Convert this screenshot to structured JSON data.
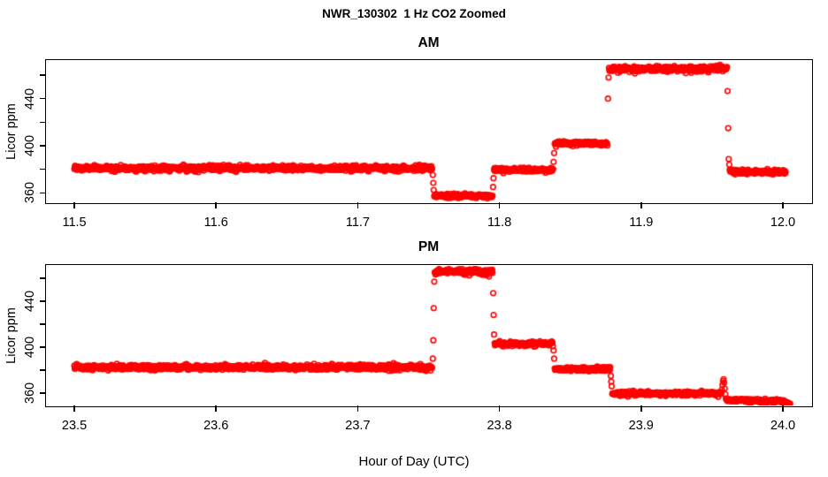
{
  "title": "NWR_130302  1 Hz CO2 Zoomed",
  "xlabel": "Hour of Day (UTC)",
  "colors": {
    "marker": "#FF0000",
    "axis": "#000000",
    "background": "#FFFFFF"
  },
  "chart_data": [
    {
      "id": "am",
      "type": "scatter",
      "title": "AM",
      "ylabel": "Licor ppm",
      "marker": "open-circle",
      "sample_rate_hz": 1,
      "xlim": [
        11.48,
        12.02
      ],
      "ylim": [
        352.0,
        472.8
      ],
      "grid": false,
      "x_ticks": [
        {
          "t": 11.5,
          "label": "11.5"
        },
        {
          "t": 11.6,
          "label": "11.6"
        },
        {
          "t": 11.7,
          "label": "11.7"
        },
        {
          "t": 11.8,
          "label": "11.8"
        },
        {
          "t": 11.9,
          "label": "11.9"
        },
        {
          "t": 12.0,
          "label": "12.0"
        }
      ],
      "y_ticks": [
        {
          "v": 360,
          "label": "360"
        },
        {
          "v": 380,
          "label": ""
        },
        {
          "v": 400,
          "label": "400"
        },
        {
          "v": 420,
          "label": ""
        },
        {
          "v": 440,
          "label": "440"
        },
        {
          "v": 460,
          "label": ""
        }
      ],
      "segments": [
        {
          "t0": 11.5,
          "t1": 11.7526,
          "v": 381.0,
          "sd": 1.1
        },
        {
          "t0": 11.754,
          "t1": 11.7952,
          "v": 357.5,
          "sd": 0.9
        },
        {
          "t0": 11.7962,
          "t1": 11.8378,
          "v": 379.5,
          "sd": 0.9
        },
        {
          "t0": 11.839,
          "t1": 11.8763,
          "v": 402.0,
          "sd": 0.9
        },
        {
          "t0": 11.8773,
          "t1": 11.9606,
          "v": 465.5,
          "sd": 1.2
        },
        {
          "t0": 11.9625,
          "t1": 12.002,
          "v": 378.0,
          "sd": 0.9
        }
      ],
      "transition_points": [
        [
          11.753,
          375.2
        ],
        [
          11.7533,
          368.5
        ],
        [
          11.7536,
          362.5
        ],
        [
          11.7955,
          365.0
        ],
        [
          11.7958,
          372.5
        ],
        [
          11.8382,
          386.3
        ],
        [
          11.8386,
          393.8
        ],
        [
          11.8766,
          440.0
        ],
        [
          11.877,
          458.0
        ],
        [
          11.961,
          446.5
        ],
        [
          11.9614,
          415.0
        ],
        [
          11.9618,
          388.7
        ],
        [
          11.9622,
          384.0
        ]
      ]
    },
    {
      "id": "pm",
      "type": "scatter",
      "title": "PM",
      "ylabel": "Licor ppm",
      "marker": "open-circle",
      "sample_rate_hz": 1,
      "xlim": [
        23.48,
        24.02
      ],
      "ylim": [
        349.2,
        471.5
      ],
      "grid": false,
      "x_ticks": [
        {
          "t": 23.5,
          "label": "23.5"
        },
        {
          "t": 23.6,
          "label": "23.6"
        },
        {
          "t": 23.7,
          "label": "23.7"
        },
        {
          "t": 23.8,
          "label": "23.8"
        },
        {
          "t": 23.9,
          "label": "23.9"
        },
        {
          "t": 24.0,
          "label": "24.0"
        }
      ],
      "y_ticks": [
        {
          "v": 360,
          "label": "360"
        },
        {
          "v": 380,
          "label": ""
        },
        {
          "v": 400,
          "label": "400"
        },
        {
          "v": 420,
          "label": ""
        },
        {
          "v": 440,
          "label": "440"
        },
        {
          "v": 460,
          "label": ""
        }
      ],
      "segments": [
        {
          "t0": 23.5,
          "t1": 23.7526,
          "v": 382.5,
          "sd": 1.1
        },
        {
          "t0": 23.7543,
          "t1": 23.7952,
          "v": 465.5,
          "sd": 1.2
        },
        {
          "t0": 23.7966,
          "t1": 23.8378,
          "v": 403.0,
          "sd": 0.9
        },
        {
          "t0": 23.839,
          "t1": 23.8782,
          "v": 381.0,
          "sd": 0.9
        },
        {
          "t0": 23.8796,
          "t1": 23.9566,
          "v": 359.5,
          "sd": 0.9
        },
        {
          "t0": 23.9598,
          "t1": 23.999,
          "v": 354.0,
          "v1": 353.0,
          "sd": 0.8
        },
        {
          "t0": 23.999,
          "t1": 24.005,
          "v": 352.5,
          "v1": 350.5,
          "sd": 0.7
        }
      ],
      "transition_points": [
        [
          23.753,
          390.0
        ],
        [
          23.7533,
          406.0
        ],
        [
          23.7536,
          434.0
        ],
        [
          23.754,
          457.0
        ],
        [
          23.7956,
          447.0
        ],
        [
          23.7959,
          428.0
        ],
        [
          23.7962,
          411.0
        ],
        [
          23.8382,
          397.0
        ],
        [
          23.8386,
          390.0
        ],
        [
          23.8786,
          375.0
        ],
        [
          23.8789,
          370.0
        ],
        [
          23.8792,
          366.0
        ],
        [
          23.957,
          363.0
        ],
        [
          23.9574,
          367.0
        ],
        [
          23.9578,
          370.5
        ],
        [
          23.9582,
          372.0
        ],
        [
          23.9586,
          369.0
        ],
        [
          23.959,
          364.0
        ],
        [
          23.9594,
          359.0
        ]
      ]
    }
  ]
}
